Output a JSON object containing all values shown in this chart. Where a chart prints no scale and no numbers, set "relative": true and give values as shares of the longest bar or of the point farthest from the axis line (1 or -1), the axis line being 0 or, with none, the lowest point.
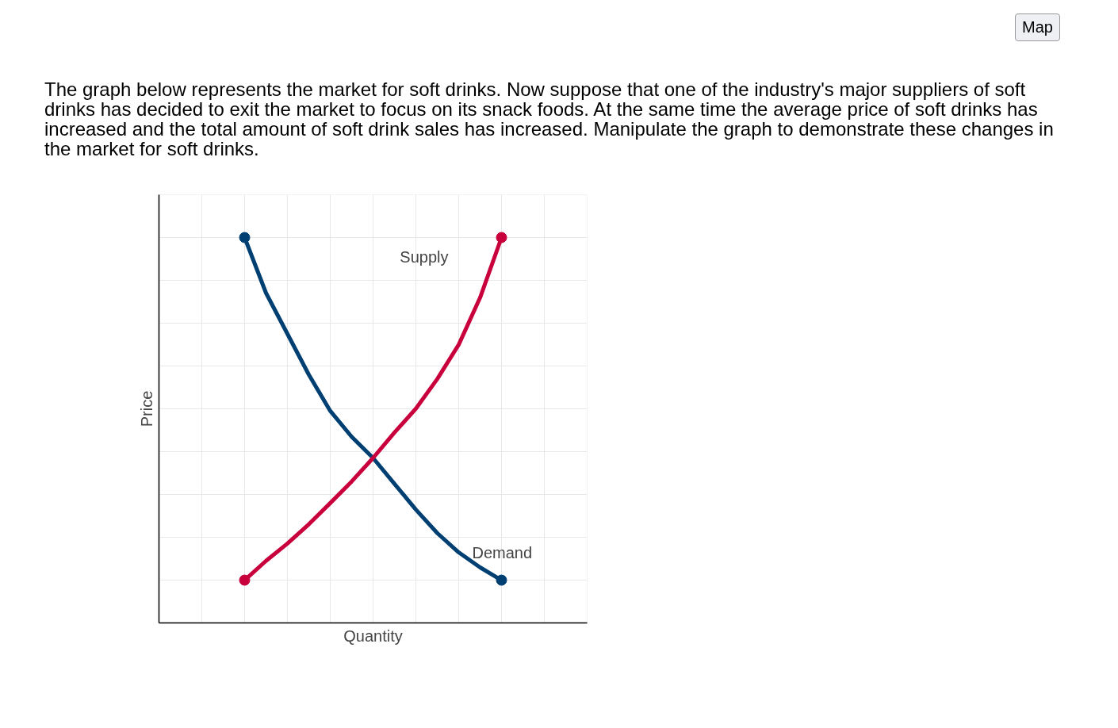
{
  "chart_data": {
    "type": "line",
    "relative": true,
    "title": "The graph below represents the market for soft drinks. Now suppose that one of the industry's major suppliers of soft drinks has decided to exit the market to focus on its snack foods. At the same time the average price of soft drinks has increased and the total amount of soft drink sales has increased. Manipulate the graph to demonstrate these changes in the market for soft drinks.",
    "xlabel": "Quantity",
    "ylabel": "Price",
    "annotations": [
      "Map"
    ],
    "grid": true,
    "tick_labels": false,
    "line_style": "solid",
    "categories": [
      null,
      null,
      null,
      null,
      null,
      null,
      null,
      null,
      null,
      null,
      null,
      null,
      null
    ],
    "series": [
      {
        "name": "Demand",
        "color": "#003f72",
        "values": [
          1,
          0.856,
          0.75,
          0.644,
          0.55,
          0.483,
          0.428,
          0.361,
          0.294,
          0.233,
          0.183,
          0.144,
          0.111
        ]
      },
      {
        "name": "Supply",
        "color": "#c8003c",
        "values": [
          0.111,
          0.161,
          0.206,
          0.256,
          0.311,
          0.367,
          0.428,
          0.494,
          0.556,
          0.633,
          0.722,
          0.844,
          1
        ]
      }
    ]
  }
}
